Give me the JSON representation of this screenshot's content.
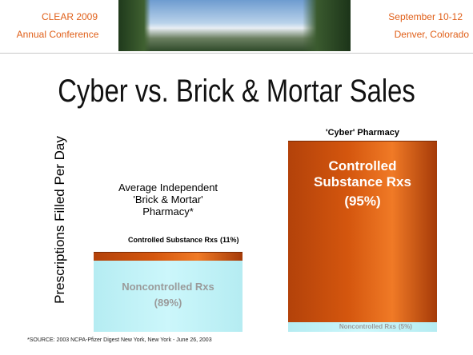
{
  "header": {
    "left": [
      "CLEAR 2009",
      "Annual Conference"
    ],
    "right": [
      "September 10-12",
      "Denver, Colorado"
    ]
  },
  "chart_data": {
    "type": "stacked-bar",
    "title": "Cyber vs. Brick & Mortar Sales",
    "y_label": "Prescriptions Filled Per Day",
    "categories": [
      "Average Independent 'Brick & Mortar' Pharmacy*",
      "'Cyber' Pharmacy"
    ],
    "series": [
      {
        "name": "Noncontrolled Rxs",
        "color": "#ccf7fb",
        "values": [
          89,
          5
        ],
        "value_labels": [
          "(89%)",
          "(5%)"
        ]
      },
      {
        "name": "Controlled Substance Rxs",
        "color": "#d4560e",
        "values": [
          11,
          95
        ],
        "value_labels": [
          "(11%)",
          "(95%)"
        ]
      }
    ]
  },
  "footnote": "*SOURCE:  2003 NCPA-Pfizer Digest New York, New York - June 26, 2003"
}
